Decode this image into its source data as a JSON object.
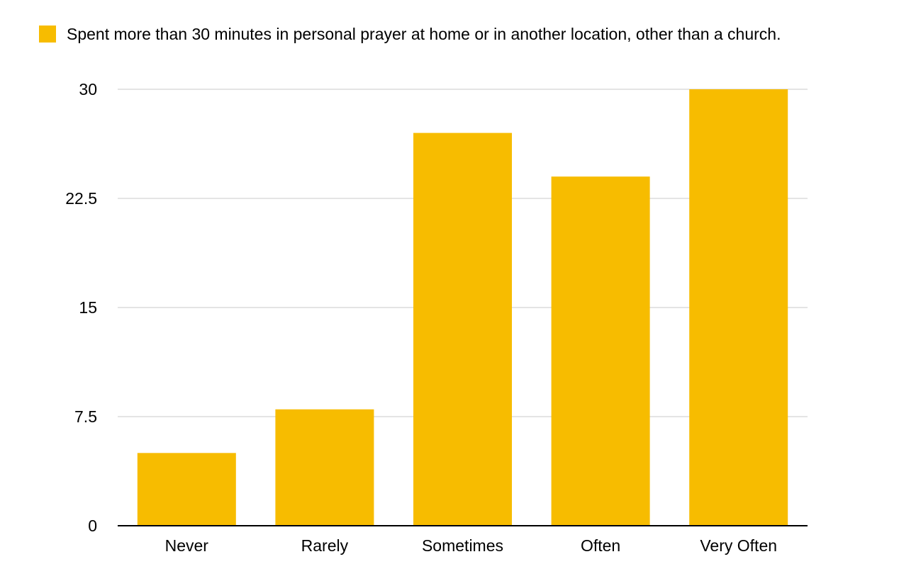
{
  "chart_data": {
    "type": "bar",
    "categories": [
      "Never",
      "Rarely",
      "Sometimes",
      "Often",
      "Very Often"
    ],
    "series": [
      {
        "name": "Spent more than 30 minutes in personal prayer at home or in another location, other than a church.",
        "values": [
          5,
          8,
          27,
          24,
          30
        ],
        "color": "#F7BC00"
      }
    ],
    "yticks": [
      "0",
      "7.5",
      "15",
      "22.5",
      "30"
    ],
    "ylim": [
      0,
      30
    ],
    "grid": true,
    "legend_position": "top-left",
    "title": "",
    "xlabel": "",
    "ylabel": ""
  }
}
